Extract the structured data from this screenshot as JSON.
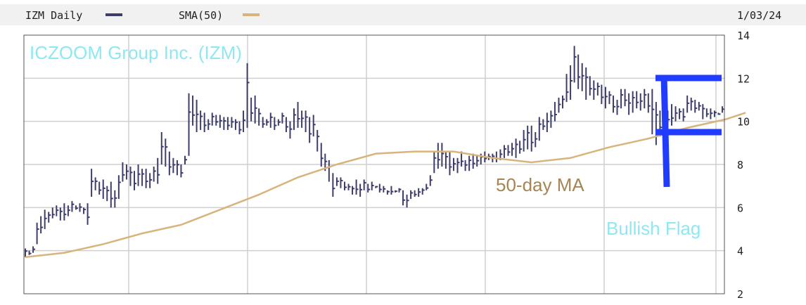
{
  "header": {
    "symbol_label": "IZM Daily",
    "sma_label": "SMA(50)",
    "date": "1/03/24"
  },
  "annotations": {
    "company": "ICZOOM Group Inc. (IZM)",
    "ma": "50-day MA",
    "pattern": "Bullish Flag"
  },
  "colors": {
    "price": "#3d3d6b",
    "sma": "#d8b47c",
    "company_text": "#8ee8f4",
    "ma_text": "#a78552",
    "pattern_text": "#8ee8f4",
    "flag": "#1f3cff",
    "grid": "#cfcfcf",
    "header_bg": "#f1f1f1"
  },
  "chart_data": {
    "type": "line",
    "title": "ICZOOM Group Inc. (IZM)",
    "ylim": [
      2,
      14
    ],
    "y_ticks": [
      "14",
      "12",
      "10",
      "8",
      "6",
      "4",
      "2"
    ],
    "grid": true,
    "legend": "top-left",
    "series": [
      {
        "name": "IZM Daily",
        "kind": "daily price range",
        "values": [
          [
            3.7,
            4.1
          ],
          [
            3.8,
            4.0
          ],
          [
            3.9,
            4.2
          ],
          [
            4.3,
            5.3
          ],
          [
            4.8,
            5.6
          ],
          [
            5.0,
            5.9
          ],
          [
            5.3,
            5.8
          ],
          [
            5.5,
            6.0
          ],
          [
            5.6,
            6.1
          ],
          [
            5.4,
            6.0
          ],
          [
            5.4,
            6.2
          ],
          [
            5.6,
            6.1
          ],
          [
            5.8,
            6.3
          ],
          [
            5.9,
            6.1
          ],
          [
            5.8,
            6.2
          ],
          [
            5.7,
            6.0
          ],
          [
            5.2,
            6.2
          ],
          [
            6.5,
            7.8
          ],
          [
            6.8,
            7.4
          ],
          [
            6.6,
            7.2
          ],
          [
            6.4,
            7.3
          ],
          [
            6.3,
            7.0
          ],
          [
            6.0,
            7.2
          ],
          [
            6.0,
            6.8
          ],
          [
            6.4,
            7.5
          ],
          [
            7.2,
            8.1
          ],
          [
            7.3,
            8.0
          ],
          [
            7.0,
            7.9
          ],
          [
            6.8,
            7.7
          ],
          [
            7.0,
            8.0
          ],
          [
            7.0,
            7.8
          ],
          [
            6.9,
            7.8
          ],
          [
            6.9,
            7.6
          ],
          [
            7.2,
            7.9
          ],
          [
            7.1,
            8.3
          ],
          [
            8.0,
            9.5
          ],
          [
            7.9,
            9.2
          ],
          [
            7.5,
            8.6
          ],
          [
            7.6,
            8.3
          ],
          [
            7.5,
            8.2
          ],
          [
            7.4,
            8.0
          ],
          [
            8.0,
            8.4
          ],
          [
            8.4,
            11.3
          ],
          [
            9.8,
            11.2
          ],
          [
            9.5,
            11.0
          ],
          [
            9.6,
            10.5
          ],
          [
            9.5,
            10.4
          ],
          [
            9.6,
            10.1
          ],
          [
            9.8,
            10.4
          ],
          [
            9.8,
            10.3
          ],
          [
            9.7,
            10.3
          ],
          [
            9.6,
            10.2
          ],
          [
            9.6,
            10.2
          ],
          [
            9.7,
            10.2
          ],
          [
            9.6,
            10.1
          ],
          [
            9.4,
            10.0
          ],
          [
            9.5,
            10.5
          ],
          [
            9.7,
            12.7
          ],
          [
            10.0,
            11.1
          ],
          [
            9.9,
            11.2
          ],
          [
            9.8,
            10.6
          ],
          [
            9.7,
            10.2
          ],
          [
            9.8,
            10.1
          ],
          [
            9.7,
            10.4
          ],
          [
            9.6,
            10.2
          ],
          [
            9.8,
            10.1
          ],
          [
            9.9,
            10.4
          ],
          [
            9.5,
            10.2
          ],
          [
            9.2,
            10.0
          ],
          [
            9.6,
            10.6
          ],
          [
            9.7,
            10.9
          ],
          [
            9.7,
            10.5
          ],
          [
            9.5,
            10.5
          ],
          [
            9.0,
            10.2
          ],
          [
            9.3,
            10.3
          ],
          [
            8.6,
            9.6
          ],
          [
            7.9,
            9.0
          ],
          [
            7.7,
            8.5
          ],
          [
            7.2,
            8.2
          ],
          [
            6.5,
            7.6
          ],
          [
            7.0,
            7.4
          ],
          [
            6.9,
            7.4
          ],
          [
            6.8,
            7.2
          ],
          [
            6.8,
            7.1
          ],
          [
            6.6,
            7.0
          ],
          [
            6.6,
            7.3
          ],
          [
            6.5,
            7.1
          ],
          [
            6.8,
            7.3
          ],
          [
            6.7,
            7.1
          ],
          [
            6.8,
            7.2
          ],
          [
            6.9,
            7.0
          ],
          [
            6.7,
            7.1
          ],
          [
            6.7,
            7.0
          ],
          [
            6.6,
            6.8
          ],
          [
            6.6,
            7.0
          ],
          [
            6.7,
            6.8
          ],
          [
            6.7,
            6.9
          ],
          [
            6.1,
            6.8
          ],
          [
            6.0,
            6.6
          ],
          [
            6.4,
            6.8
          ],
          [
            6.5,
            6.8
          ],
          [
            6.5,
            6.9
          ],
          [
            6.6,
            6.9
          ],
          [
            6.8,
            7.1
          ],
          [
            7.0,
            7.5
          ],
          [
            7.6,
            8.6
          ],
          [
            7.8,
            9.0
          ],
          [
            7.9,
            9.0
          ],
          [
            7.8,
            8.6
          ],
          [
            7.5,
            8.6
          ],
          [
            7.7,
            8.3
          ],
          [
            7.6,
            8.3
          ],
          [
            7.9,
            8.6
          ],
          [
            7.7,
            8.2
          ],
          [
            7.7,
            8.4
          ],
          [
            7.8,
            8.5
          ],
          [
            7.9,
            8.4
          ],
          [
            8.0,
            8.5
          ],
          [
            8.1,
            8.6
          ],
          [
            8.2,
            8.5
          ],
          [
            8.1,
            8.5
          ],
          [
            8.1,
            8.6
          ],
          [
            8.2,
            8.7
          ],
          [
            8.3,
            8.9
          ],
          [
            8.4,
            8.9
          ],
          [
            8.4,
            9.0
          ],
          [
            8.3,
            9.2
          ],
          [
            8.5,
            9.1
          ],
          [
            8.6,
            9.6
          ],
          [
            8.7,
            9.8
          ],
          [
            8.6,
            9.8
          ],
          [
            8.8,
            9.5
          ],
          [
            9.1,
            10.2
          ],
          [
            9.6,
            10.1
          ],
          [
            9.5,
            10.4
          ],
          [
            9.7,
            10.5
          ],
          [
            10.0,
            10.9
          ],
          [
            10.4,
            11.1
          ],
          [
            10.6,
            11.2
          ],
          [
            10.9,
            12.2
          ],
          [
            11.0,
            12.6
          ],
          [
            11.8,
            13.5
          ],
          [
            11.5,
            13.1
          ],
          [
            11.4,
            12.7
          ],
          [
            11.0,
            12.5
          ],
          [
            11.2,
            12.1
          ],
          [
            11.0,
            11.9
          ],
          [
            11.2,
            11.8
          ],
          [
            10.8,
            11.7
          ],
          [
            10.6,
            11.6
          ],
          [
            10.8,
            11.4
          ],
          [
            10.4,
            11.2
          ],
          [
            10.3,
            11.0
          ],
          [
            10.6,
            11.5
          ],
          [
            10.7,
            11.5
          ],
          [
            10.3,
            11.3
          ],
          [
            10.4,
            11.4
          ],
          [
            10.6,
            11.4
          ],
          [
            10.5,
            11.3
          ],
          [
            10.6,
            11.5
          ],
          [
            10.4,
            11.3
          ],
          [
            9.4,
            11.5
          ],
          [
            8.9,
            10.9
          ],
          [
            9.3,
            10.5
          ],
          [
            9.4,
            10.3
          ],
          [
            9.1,
            10.5
          ],
          [
            9.8,
            10.8
          ],
          [
            10.0,
            10.7
          ],
          [
            10.1,
            10.6
          ],
          [
            10.0,
            10.6
          ],
          [
            10.4,
            11.2
          ],
          [
            10.5,
            11.1
          ],
          [
            10.4,
            11.0
          ],
          [
            10.5,
            10.9
          ],
          [
            10.1,
            10.8
          ],
          [
            10.2,
            10.6
          ],
          [
            10.1,
            10.6
          ],
          [
            10.2,
            10.5
          ],
          [
            10.3,
            10.4
          ],
          [
            10.4,
            10.7
          ]
        ]
      },
      {
        "name": "SMA(50)",
        "kind": "moving average",
        "points": [
          [
            0,
            3.7
          ],
          [
            10,
            3.9
          ],
          [
            20,
            4.3
          ],
          [
            30,
            4.8
          ],
          [
            40,
            5.2
          ],
          [
            50,
            5.9
          ],
          [
            60,
            6.6
          ],
          [
            70,
            7.4
          ],
          [
            80,
            8.0
          ],
          [
            90,
            8.5
          ],
          [
            100,
            8.6
          ],
          [
            110,
            8.6
          ],
          [
            120,
            8.3
          ],
          [
            130,
            8.1
          ],
          [
            140,
            8.3
          ],
          [
            150,
            8.8
          ],
          [
            160,
            9.2
          ],
          [
            170,
            9.7
          ],
          [
            180,
            10.1
          ],
          [
            185,
            10.4
          ]
        ]
      }
    ]
  }
}
